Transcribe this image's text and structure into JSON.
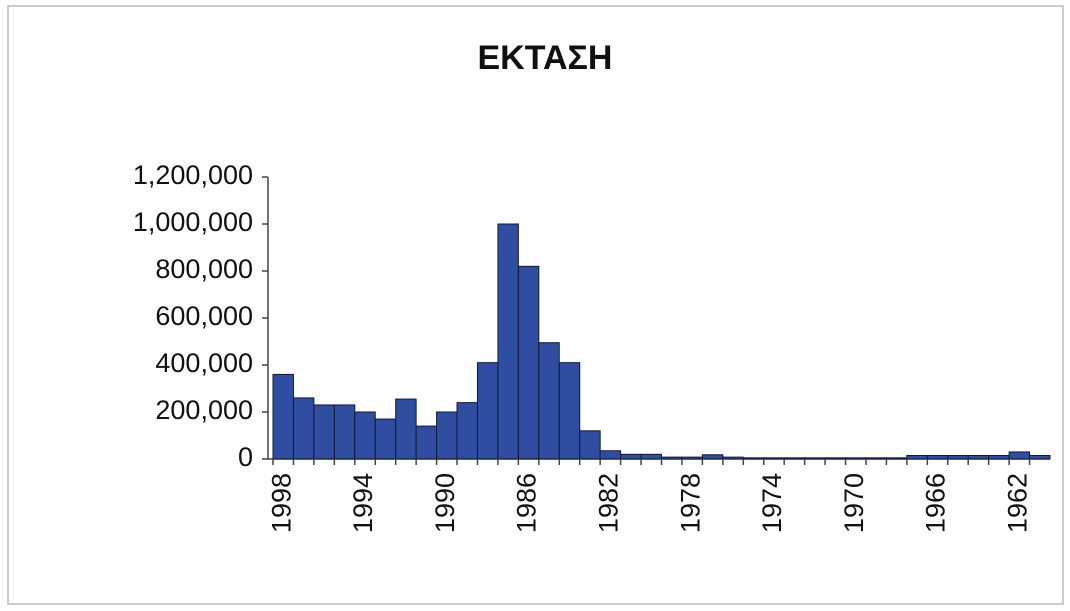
{
  "chart_data": {
    "type": "bar",
    "title": "ΕΚΤΑΣΗ",
    "categories": [
      "1998",
      null,
      null,
      null,
      "1994",
      null,
      null,
      null,
      "1990",
      null,
      null,
      null,
      "1986",
      null,
      null,
      null,
      "1982",
      null,
      null,
      null,
      "1978",
      null,
      null,
      null,
      "1974",
      null,
      null,
      null,
      "1970",
      null,
      null,
      null,
      "1966",
      null,
      null,
      null,
      "1962",
      null
    ],
    "values": [
      360000,
      260000,
      230000,
      230000,
      200000,
      170000,
      255000,
      140000,
      200000,
      240000,
      410000,
      1000000,
      820000,
      495000,
      410000,
      120000,
      35000,
      20000,
      20000,
      8000,
      8000,
      18000,
      8000,
      5000,
      5000,
      5000,
      5000,
      5000,
      5000,
      5000,
      5000,
      15000,
      15000,
      15000,
      15000,
      15000,
      30000,
      15000
    ],
    "color": "#2f4ea2",
    "ylim": [
      0,
      1200000
    ],
    "yticks": [
      0,
      {
        "value": 200000,
        "label": "200,000"
      },
      {
        "value": 400000,
        "label": "400,000"
      },
      {
        "value": 600000,
        "label": "600,000"
      },
      {
        "value": 800000,
        "label": "800,000"
      },
      {
        "value": 1000000,
        "label": "1,000,000"
      },
      {
        "value": 1200000,
        "label": "1,200,000"
      }
    ],
    "grid": false
  }
}
